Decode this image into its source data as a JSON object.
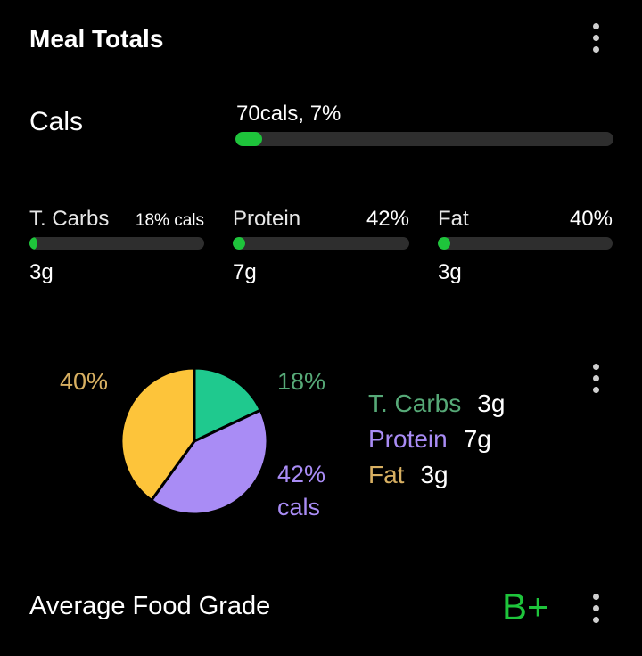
{
  "header": {
    "title": "Meal Totals"
  },
  "calories": {
    "label": "Cals",
    "text": "70cals, 7%",
    "progress_percent": 7,
    "bar_color": "#1ec43b"
  },
  "macros": [
    {
      "name": "T. Carbs",
      "percent_text": "18% cals",
      "grams": "3g",
      "progress_fraction": 0.0
    },
    {
      "name": "Protein",
      "percent_text": "42%",
      "grams": "7g",
      "progress_fraction": 0.0
    },
    {
      "name": "Fat",
      "percent_text": "40%",
      "grams": "3g",
      "progress_fraction": 0.0
    }
  ],
  "chart_data": {
    "type": "pie",
    "slices": [
      {
        "name": "T. Carbs",
        "value": 18,
        "color": "#1fc98e",
        "label": "18%"
      },
      {
        "name": "Protein",
        "value": 42,
        "color": "#a98cf5",
        "label": "42%",
        "label_suffix": "cals"
      },
      {
        "name": "Fat",
        "value": 40,
        "color": "#fdc43a",
        "label": "40%"
      }
    ],
    "legend": [
      {
        "name": "T. Carbs",
        "value": "3g",
        "color": "#56a977"
      },
      {
        "name": "Protein",
        "value": "7g",
        "color": "#a98cf5"
      },
      {
        "name": "Fat",
        "value": "3g",
        "color": "#d8b062"
      }
    ],
    "label_colors": {
      "carbs": "#56a977",
      "protein": "#a98cf5",
      "fat": "#d8b062"
    }
  },
  "grade": {
    "label": "Average Food Grade",
    "value": "B+"
  },
  "icons": {
    "menu": "more-vertical-icon"
  }
}
